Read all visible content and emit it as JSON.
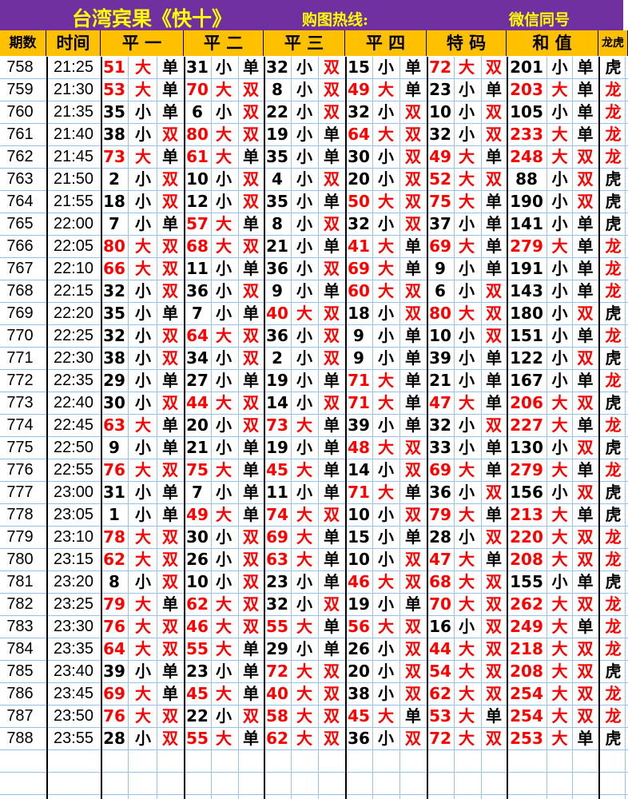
{
  "header": {
    "title": "台湾宾果《快十》",
    "hotline_label": "购图热线:",
    "wechat_label": "微信同号"
  },
  "columns": [
    "期数",
    "时间",
    "平 一",
    "平 二",
    "平 三",
    "平 四",
    "特 码",
    "和 值",
    "龙虎"
  ],
  "labels": {
    "big": "大",
    "small": "小",
    "odd": "单",
    "even": "双",
    "dragon": "龙",
    "tiger": "虎"
  },
  "colors": {
    "title_bg": "#7030a0",
    "title_text": "#ffff00",
    "header_bg": "#ffc000",
    "red": "#ff0000",
    "grid": "#9bc2e6"
  },
  "rows": [
    {
      "id": "758",
      "time": "21:25",
      "p1": "51",
      "p2": "31",
      "p3": "32",
      "p4": "15",
      "tm": "72",
      "sum": "201",
      "lh": "虎"
    },
    {
      "id": "759",
      "time": "21:30",
      "p1": "53",
      "p2": "70",
      "p3": "8",
      "p4": "49",
      "tm": "23",
      "sum": "203",
      "lh": "龙"
    },
    {
      "id": "760",
      "time": "21:35",
      "p1": "35",
      "p2": "6",
      "p3": "22",
      "p4": "32",
      "tm": "10",
      "sum": "105",
      "lh": "龙"
    },
    {
      "id": "761",
      "time": "21:40",
      "p1": "38",
      "p2": "80",
      "p3": "19",
      "p4": "64",
      "tm": "32",
      "sum": "233",
      "lh": "龙"
    },
    {
      "id": "762",
      "time": "21:45",
      "p1": "73",
      "p2": "61",
      "p3": "35",
      "p4": "30",
      "tm": "49",
      "sum": "248",
      "lh": "龙"
    },
    {
      "id": "763",
      "time": "21:50",
      "p1": "2",
      "p2": "10",
      "p3": "4",
      "p4": "20",
      "tm": "52",
      "sum": "88",
      "lh": "虎"
    },
    {
      "id": "764",
      "time": "21:55",
      "p1": "18",
      "p2": "12",
      "p3": "35",
      "p4": "50",
      "tm": "75",
      "sum": "190",
      "lh": "虎"
    },
    {
      "id": "765",
      "time": "22:00",
      "p1": "7",
      "p2": "57",
      "p3": "8",
      "p4": "32",
      "tm": "37",
      "sum": "141",
      "lh": "虎"
    },
    {
      "id": "766",
      "time": "22:05",
      "p1": "80",
      "p2": "68",
      "p3": "21",
      "p4": "41",
      "tm": "69",
      "sum": "279",
      "lh": "龙"
    },
    {
      "id": "767",
      "time": "22:10",
      "p1": "66",
      "p2": "11",
      "p3": "36",
      "p4": "69",
      "tm": "9",
      "sum": "191",
      "lh": "龙"
    },
    {
      "id": "768",
      "time": "22:15",
      "p1": "32",
      "p2": "36",
      "p3": "9",
      "p4": "60",
      "tm": "6",
      "sum": "143",
      "lh": "龙"
    },
    {
      "id": "769",
      "time": "22:20",
      "p1": "35",
      "p2": "7",
      "p3": "40",
      "p4": "18",
      "tm": "80",
      "sum": "180",
      "lh": "虎"
    },
    {
      "id": "770",
      "time": "22:25",
      "p1": "32",
      "p2": "64",
      "p3": "36",
      "p4": "9",
      "tm": "10",
      "sum": "151",
      "lh": "龙"
    },
    {
      "id": "771",
      "time": "22:30",
      "p1": "38",
      "p2": "34",
      "p3": "2",
      "p4": "9",
      "tm": "39",
      "sum": "122",
      "lh": "虎"
    },
    {
      "id": "772",
      "time": "22:35",
      "p1": "29",
      "p2": "27",
      "p3": "19",
      "p4": "71",
      "tm": "21",
      "sum": "167",
      "lh": "龙"
    },
    {
      "id": "773",
      "time": "22:40",
      "p1": "30",
      "p2": "44",
      "p3": "14",
      "p4": "71",
      "tm": "47",
      "sum": "206",
      "lh": "虎"
    },
    {
      "id": "774",
      "time": "22:45",
      "p1": "63",
      "p2": "20",
      "p3": "73",
      "p4": "39",
      "tm": "32",
      "sum": "227",
      "lh": "龙"
    },
    {
      "id": "775",
      "time": "22:50",
      "p1": "9",
      "p2": "21",
      "p3": "19",
      "p4": "48",
      "tm": "33",
      "sum": "130",
      "lh": "虎"
    },
    {
      "id": "776",
      "time": "22:55",
      "p1": "76",
      "p2": "75",
      "p3": "45",
      "p4": "14",
      "tm": "69",
      "sum": "279",
      "lh": "龙"
    },
    {
      "id": "777",
      "time": "23:00",
      "p1": "31",
      "p2": "7",
      "p3": "11",
      "p4": "71",
      "tm": "36",
      "sum": "156",
      "lh": "虎"
    },
    {
      "id": "778",
      "time": "23:05",
      "p1": "1",
      "p2": "49",
      "p3": "74",
      "p4": "10",
      "tm": "79",
      "sum": "213",
      "lh": "虎"
    },
    {
      "id": "779",
      "time": "23:10",
      "p1": "78",
      "p2": "30",
      "p3": "69",
      "p4": "15",
      "tm": "28",
      "sum": "220",
      "lh": "龙"
    },
    {
      "id": "780",
      "time": "23:15",
      "p1": "62",
      "p2": "26",
      "p3": "63",
      "p4": "10",
      "tm": "47",
      "sum": "208",
      "lh": "龙"
    },
    {
      "id": "781",
      "time": "23:20",
      "p1": "8",
      "p2": "10",
      "p3": "23",
      "p4": "46",
      "tm": "68",
      "sum": "155",
      "lh": "虎"
    },
    {
      "id": "782",
      "time": "23:25",
      "p1": "79",
      "p2": "62",
      "p3": "32",
      "p4": "19",
      "tm": "70",
      "sum": "262",
      "lh": "龙"
    },
    {
      "id": "783",
      "time": "23:30",
      "p1": "76",
      "p2": "46",
      "p3": "55",
      "p4": "56",
      "tm": "16",
      "sum": "249",
      "lh": "龙"
    },
    {
      "id": "784",
      "time": "23:35",
      "p1": "64",
      "p2": "55",
      "p3": "29",
      "p4": "26",
      "tm": "44",
      "sum": "218",
      "lh": "龙"
    },
    {
      "id": "785",
      "time": "23:40",
      "p1": "39",
      "p2": "23",
      "p3": "72",
      "p4": "20",
      "tm": "54",
      "sum": "208",
      "lh": "虎"
    },
    {
      "id": "786",
      "time": "23:45",
      "p1": "69",
      "p2": "45",
      "p3": "40",
      "p4": "38",
      "tm": "62",
      "sum": "254",
      "lh": "龙"
    },
    {
      "id": "787",
      "time": "23:50",
      "p1": "76",
      "p2": "22",
      "p3": "58",
      "p4": "45",
      "tm": "53",
      "sum": "254",
      "lh": "龙"
    },
    {
      "id": "788",
      "time": "23:55",
      "p1": "28",
      "p2": "55",
      "p3": "62",
      "p4": "36",
      "tm": "72",
      "sum": "253",
      "lh": "虎"
    }
  ]
}
